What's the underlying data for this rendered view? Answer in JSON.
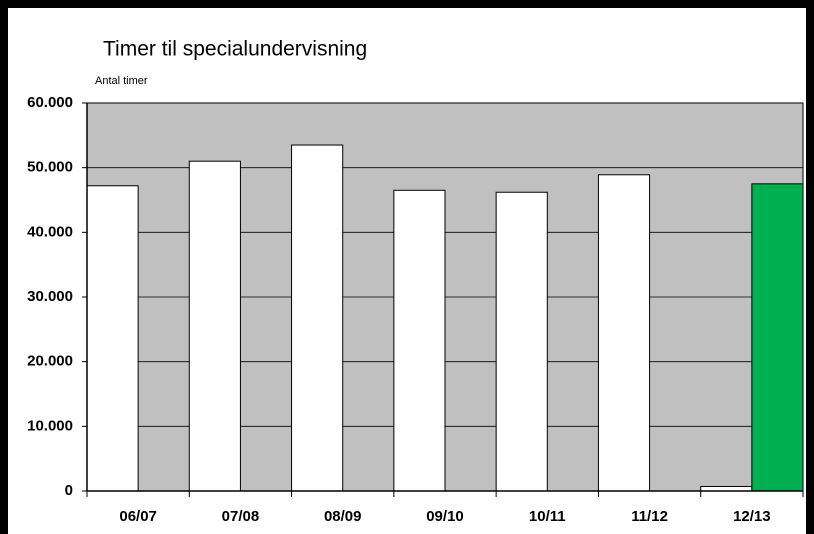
{
  "chart_data": {
    "type": "bar",
    "title": "Timer til specialundervisning",
    "subtitle": "Antal timer",
    "categories": [
      "06/07",
      "07/08",
      "08/09",
      "09/10",
      "10/11",
      "11/12",
      "12/13"
    ],
    "series": [
      {
        "color": "#ffffff",
        "values": [
          47200,
          51000,
          53500,
          46500,
          46200,
          48900,
          700
        ]
      },
      {
        "color": "#00b050",
        "values": [
          null,
          null,
          null,
          null,
          null,
          null,
          47500
        ]
      }
    ],
    "ylim": [
      0,
      60000
    ],
    "yticks": [
      {
        "value": 0,
        "label": "0"
      },
      {
        "value": 10000,
        "label": "10.000"
      },
      {
        "value": 20000,
        "label": "20.000"
      },
      {
        "value": 30000,
        "label": "30.000"
      },
      {
        "value": 40000,
        "label": "40.000"
      },
      {
        "value": 50000,
        "label": "50.000"
      },
      {
        "value": 60000,
        "label": "60.000"
      }
    ],
    "grid": true,
    "plot_background": "#c0c0c0"
  }
}
